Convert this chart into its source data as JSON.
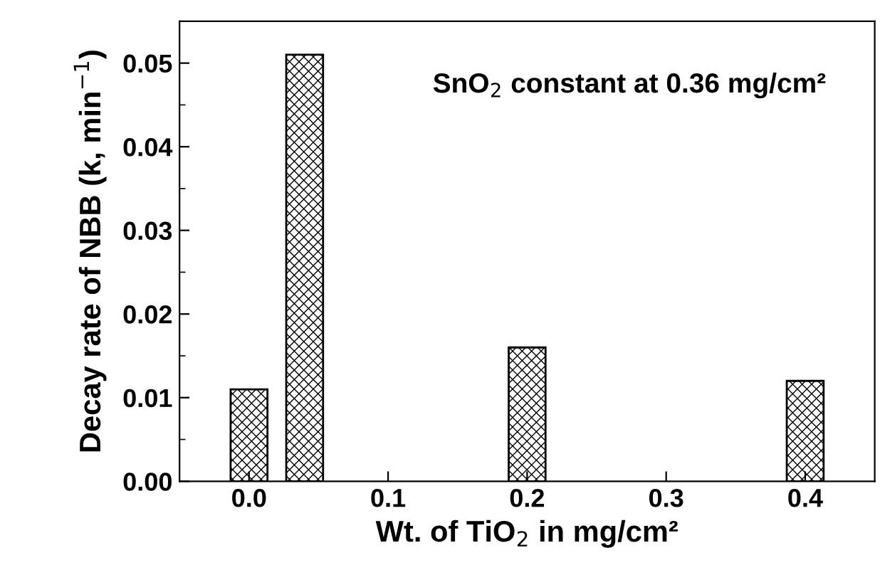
{
  "chart_data": {
    "type": "bar",
    "x": [
      0.0,
      0.04,
      0.2,
      0.4
    ],
    "values": [
      0.011,
      0.051,
      0.016,
      0.012
    ],
    "color": "#000000",
    "xlabel": "Wt. of TiO$_{2}$ in mg/cm²",
    "ylabel": "Decay rate of NBB (k, min$^{−1}$)",
    "annotations": [
      "SnO$_{2}$ constant at 0.36 mg/cm²"
    ],
    "xlim": [
      -0.05,
      0.45
    ],
    "xticks": [
      {
        "value": 0.0,
        "label": "0.0"
      },
      0.1,
      0.2,
      0.3,
      0.4
    ],
    "ylim": [
      0,
      0.055
    ],
    "yticks": [
      {
        "value": 0,
        "label": "0.00"
      },
      {
        "value": 0.01,
        "label": "0.01"
      },
      {
        "value": 0.02,
        "label": "0.02"
      },
      {
        "value": 0.03,
        "label": "0.03"
      },
      {
        "value": 0.04,
        "label": "0.04"
      },
      {
        "value": 0.05,
        "label": "0.05"
      }
    ],
    "grid": false
  }
}
